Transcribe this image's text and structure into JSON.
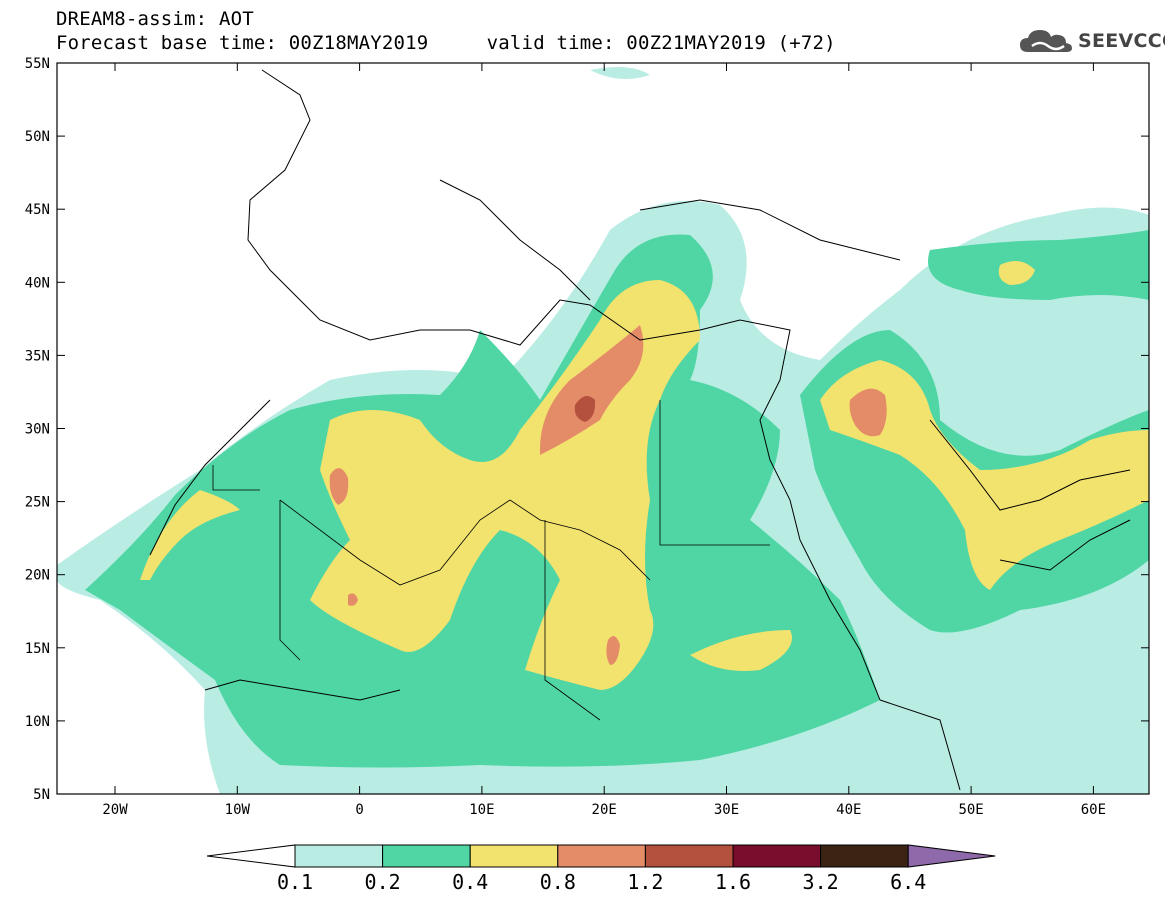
{
  "header": {
    "title_line1": "DREAM8-assim: AOT",
    "title_line2": "Forecast base time: 00Z18MAY2019     valid time: 00Z21MAY2019 (+72)"
  },
  "logo": {
    "icon": "cloud-icon",
    "text": "SEEVCCC"
  },
  "map": {
    "lat_labels": [
      "55N",
      "50N",
      "45N",
      "40N",
      "35N",
      "30N",
      "25N",
      "20N",
      "15N",
      "10N",
      "5N"
    ],
    "lon_labels": [
      "20W",
      "10W",
      "0",
      "10E",
      "20E",
      "30E",
      "40E",
      "50E",
      "60E"
    ]
  },
  "colorbar": {
    "colors": [
      "#b9ede4",
      "#50d6a4",
      "#f2e26e",
      "#e48c68",
      "#b4503e",
      "#7a0c2e",
      "#3c2414",
      "#8e6aaa"
    ],
    "labels": [
      "0.1",
      "0.2",
      "0.4",
      "0.8",
      "1.2",
      "1.6",
      "3.2",
      "6.4"
    ]
  }
}
